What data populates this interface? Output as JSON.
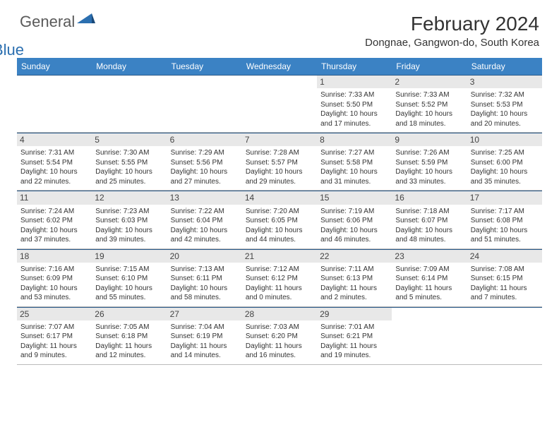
{
  "logo": {
    "general": "General",
    "blue": "Blue"
  },
  "title": "February 2024",
  "location": "Dongnae, Gangwon-do, South Korea",
  "colors": {
    "header_bg": "#3b82c4",
    "header_text": "#ffffff",
    "week_border_top": "#2a5a8a",
    "week_border_bottom": "#bbbbbb",
    "daynum_bg": "#e8e8e8",
    "body_text": "#333333",
    "logo_gray": "#5a5a5a",
    "logo_blue": "#2b6fb0"
  },
  "day_names": [
    "Sunday",
    "Monday",
    "Tuesday",
    "Wednesday",
    "Thursday",
    "Friday",
    "Saturday"
  ],
  "weeks": [
    [
      {
        "n": "",
        "sr": "",
        "ss": "",
        "dl1": "",
        "dl2": ""
      },
      {
        "n": "",
        "sr": "",
        "ss": "",
        "dl1": "",
        "dl2": ""
      },
      {
        "n": "",
        "sr": "",
        "ss": "",
        "dl1": "",
        "dl2": ""
      },
      {
        "n": "",
        "sr": "",
        "ss": "",
        "dl1": "",
        "dl2": ""
      },
      {
        "n": "1",
        "sr": "Sunrise: 7:33 AM",
        "ss": "Sunset: 5:50 PM",
        "dl1": "Daylight: 10 hours",
        "dl2": "and 17 minutes."
      },
      {
        "n": "2",
        "sr": "Sunrise: 7:33 AM",
        "ss": "Sunset: 5:52 PM",
        "dl1": "Daylight: 10 hours",
        "dl2": "and 18 minutes."
      },
      {
        "n": "3",
        "sr": "Sunrise: 7:32 AM",
        "ss": "Sunset: 5:53 PM",
        "dl1": "Daylight: 10 hours",
        "dl2": "and 20 minutes."
      }
    ],
    [
      {
        "n": "4",
        "sr": "Sunrise: 7:31 AM",
        "ss": "Sunset: 5:54 PM",
        "dl1": "Daylight: 10 hours",
        "dl2": "and 22 minutes."
      },
      {
        "n": "5",
        "sr": "Sunrise: 7:30 AM",
        "ss": "Sunset: 5:55 PM",
        "dl1": "Daylight: 10 hours",
        "dl2": "and 25 minutes."
      },
      {
        "n": "6",
        "sr": "Sunrise: 7:29 AM",
        "ss": "Sunset: 5:56 PM",
        "dl1": "Daylight: 10 hours",
        "dl2": "and 27 minutes."
      },
      {
        "n": "7",
        "sr": "Sunrise: 7:28 AM",
        "ss": "Sunset: 5:57 PM",
        "dl1": "Daylight: 10 hours",
        "dl2": "and 29 minutes."
      },
      {
        "n": "8",
        "sr": "Sunrise: 7:27 AM",
        "ss": "Sunset: 5:58 PM",
        "dl1": "Daylight: 10 hours",
        "dl2": "and 31 minutes."
      },
      {
        "n": "9",
        "sr": "Sunrise: 7:26 AM",
        "ss": "Sunset: 5:59 PM",
        "dl1": "Daylight: 10 hours",
        "dl2": "and 33 minutes."
      },
      {
        "n": "10",
        "sr": "Sunrise: 7:25 AM",
        "ss": "Sunset: 6:00 PM",
        "dl1": "Daylight: 10 hours",
        "dl2": "and 35 minutes."
      }
    ],
    [
      {
        "n": "11",
        "sr": "Sunrise: 7:24 AM",
        "ss": "Sunset: 6:02 PM",
        "dl1": "Daylight: 10 hours",
        "dl2": "and 37 minutes."
      },
      {
        "n": "12",
        "sr": "Sunrise: 7:23 AM",
        "ss": "Sunset: 6:03 PM",
        "dl1": "Daylight: 10 hours",
        "dl2": "and 39 minutes."
      },
      {
        "n": "13",
        "sr": "Sunrise: 7:22 AM",
        "ss": "Sunset: 6:04 PM",
        "dl1": "Daylight: 10 hours",
        "dl2": "and 42 minutes."
      },
      {
        "n": "14",
        "sr": "Sunrise: 7:20 AM",
        "ss": "Sunset: 6:05 PM",
        "dl1": "Daylight: 10 hours",
        "dl2": "and 44 minutes."
      },
      {
        "n": "15",
        "sr": "Sunrise: 7:19 AM",
        "ss": "Sunset: 6:06 PM",
        "dl1": "Daylight: 10 hours",
        "dl2": "and 46 minutes."
      },
      {
        "n": "16",
        "sr": "Sunrise: 7:18 AM",
        "ss": "Sunset: 6:07 PM",
        "dl1": "Daylight: 10 hours",
        "dl2": "and 48 minutes."
      },
      {
        "n": "17",
        "sr": "Sunrise: 7:17 AM",
        "ss": "Sunset: 6:08 PM",
        "dl1": "Daylight: 10 hours",
        "dl2": "and 51 minutes."
      }
    ],
    [
      {
        "n": "18",
        "sr": "Sunrise: 7:16 AM",
        "ss": "Sunset: 6:09 PM",
        "dl1": "Daylight: 10 hours",
        "dl2": "and 53 minutes."
      },
      {
        "n": "19",
        "sr": "Sunrise: 7:15 AM",
        "ss": "Sunset: 6:10 PM",
        "dl1": "Daylight: 10 hours",
        "dl2": "and 55 minutes."
      },
      {
        "n": "20",
        "sr": "Sunrise: 7:13 AM",
        "ss": "Sunset: 6:11 PM",
        "dl1": "Daylight: 10 hours",
        "dl2": "and 58 minutes."
      },
      {
        "n": "21",
        "sr": "Sunrise: 7:12 AM",
        "ss": "Sunset: 6:12 PM",
        "dl1": "Daylight: 11 hours",
        "dl2": "and 0 minutes."
      },
      {
        "n": "22",
        "sr": "Sunrise: 7:11 AM",
        "ss": "Sunset: 6:13 PM",
        "dl1": "Daylight: 11 hours",
        "dl2": "and 2 minutes."
      },
      {
        "n": "23",
        "sr": "Sunrise: 7:09 AM",
        "ss": "Sunset: 6:14 PM",
        "dl1": "Daylight: 11 hours",
        "dl2": "and 5 minutes."
      },
      {
        "n": "24",
        "sr": "Sunrise: 7:08 AM",
        "ss": "Sunset: 6:15 PM",
        "dl1": "Daylight: 11 hours",
        "dl2": "and 7 minutes."
      }
    ],
    [
      {
        "n": "25",
        "sr": "Sunrise: 7:07 AM",
        "ss": "Sunset: 6:17 PM",
        "dl1": "Daylight: 11 hours",
        "dl2": "and 9 minutes."
      },
      {
        "n": "26",
        "sr": "Sunrise: 7:05 AM",
        "ss": "Sunset: 6:18 PM",
        "dl1": "Daylight: 11 hours",
        "dl2": "and 12 minutes."
      },
      {
        "n": "27",
        "sr": "Sunrise: 7:04 AM",
        "ss": "Sunset: 6:19 PM",
        "dl1": "Daylight: 11 hours",
        "dl2": "and 14 minutes."
      },
      {
        "n": "28",
        "sr": "Sunrise: 7:03 AM",
        "ss": "Sunset: 6:20 PM",
        "dl1": "Daylight: 11 hours",
        "dl2": "and 16 minutes."
      },
      {
        "n": "29",
        "sr": "Sunrise: 7:01 AM",
        "ss": "Sunset: 6:21 PM",
        "dl1": "Daylight: 11 hours",
        "dl2": "and 19 minutes."
      },
      {
        "n": "",
        "sr": "",
        "ss": "",
        "dl1": "",
        "dl2": ""
      },
      {
        "n": "",
        "sr": "",
        "ss": "",
        "dl1": "",
        "dl2": ""
      }
    ]
  ]
}
